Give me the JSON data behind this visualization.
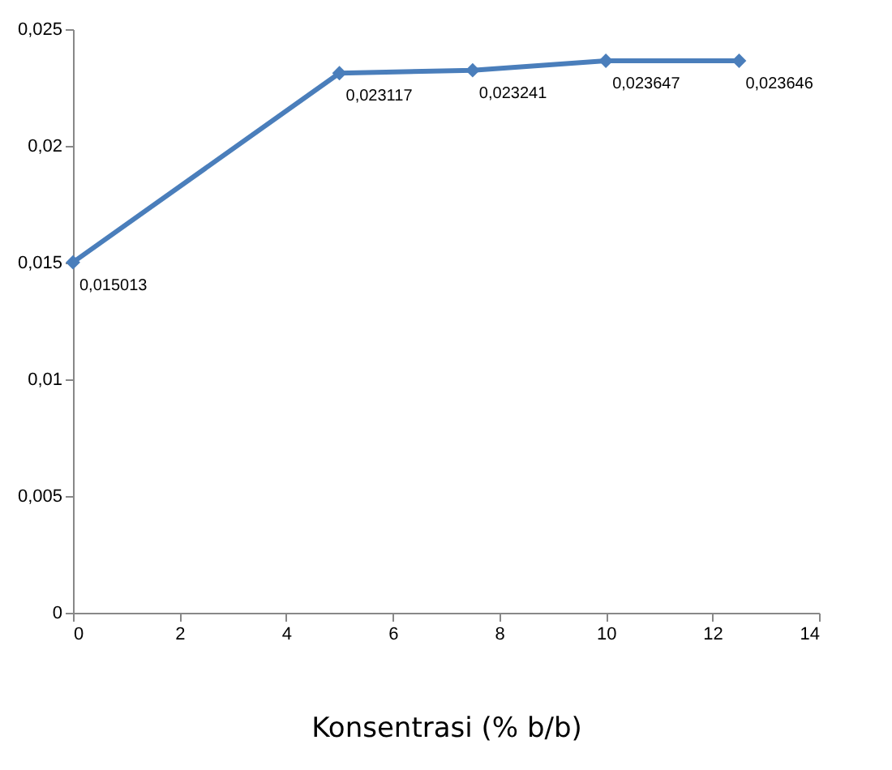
{
  "chart_data": {
    "type": "line",
    "xlabel": "Konsentrasi (% b/b)",
    "x": [
      0,
      5,
      7.5,
      10,
      12.5
    ],
    "series": [
      {
        "color": "#4a7ebb",
        "values": [
          0.015013,
          0.023117,
          0.023241,
          0.023647,
          0.023646
        ],
        "value_labels": [
          "0,015013",
          "0,023117",
          "0,023241",
          "0,023647",
          "0,023646"
        ]
      }
    ],
    "xlim": [
      0,
      14
    ],
    "xticks": [
      0,
      2,
      4,
      6,
      8,
      10,
      12,
      14
    ],
    "ylim": [
      0,
      0.025
    ],
    "yticks": [
      0,
      {
        "value": 0.005,
        "label": "0,005"
      },
      {
        "value": 0.01,
        "label": "0,01"
      },
      {
        "value": 0.015,
        "label": "0,015"
      },
      {
        "value": 0.02,
        "label": "0,02"
      },
      {
        "value": 0.025,
        "label": "0,025"
      }
    ],
    "marker": "diamond",
    "line_style": "solid",
    "grid": false
  }
}
